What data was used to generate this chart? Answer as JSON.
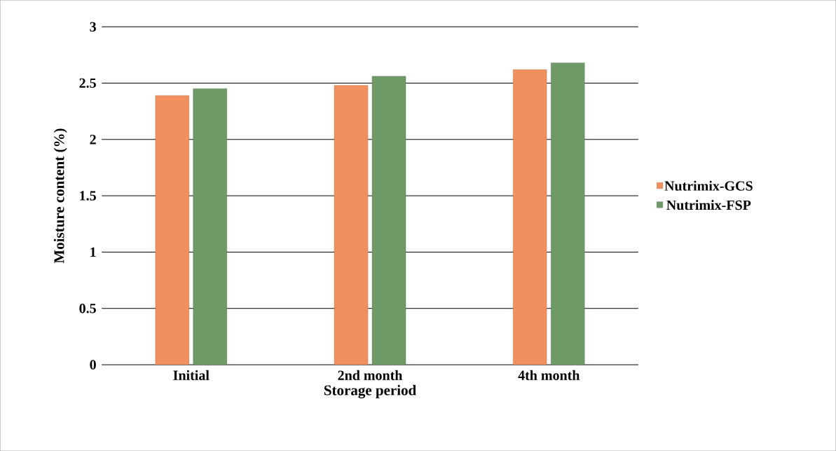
{
  "chart_data": {
    "type": "bar",
    "xlabel": "Storage period",
    "ylabel": "Moisture content (%)",
    "categories": [
      "Initial",
      "2nd month",
      "4th month"
    ],
    "series": [
      {
        "name": "Nutrimix-GCS",
        "color": "#f0905e",
        "values": [
          2.39,
          2.48,
          2.62
        ]
      },
      {
        "name": "Nutrimix-FSP",
        "color": "#6f9a68",
        "values": [
          2.45,
          2.56,
          2.68
        ]
      }
    ],
    "ylim": [
      0,
      3
    ],
    "yticks": [
      0,
      0.5,
      1,
      1.5,
      2,
      2.5,
      3
    ],
    "grid": "y",
    "legend": "right"
  }
}
